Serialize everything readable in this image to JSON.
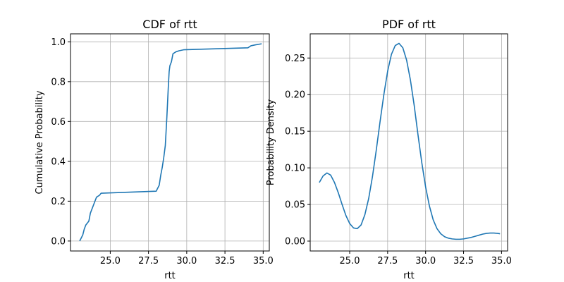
{
  "chart_data": [
    {
      "type": "line",
      "title": "CDF of rtt",
      "xlabel": "rtt",
      "ylabel": "Cumulative Probability",
      "xlim": [
        22.4,
        35.4
      ],
      "ylim": [
        -0.05,
        1.04
      ],
      "xticks": [
        25.0,
        27.5,
        30.0,
        32.5,
        35.0
      ],
      "xtick_labels": [
        "25.0",
        "27.5",
        "30.0",
        "32.5",
        "35.0"
      ],
      "yticks": [
        0.0,
        0.2,
        0.4,
        0.6,
        0.8,
        1.0
      ],
      "ytick_labels": [
        "0.0",
        "0.2",
        "0.4",
        "0.6",
        "0.8",
        "1.0"
      ],
      "grid": true,
      "color": "#1f77b4",
      "series": [
        {
          "x": [
            23.0,
            23.2,
            23.3,
            23.4,
            23.6,
            23.7,
            23.8,
            24.0,
            24.1,
            24.3,
            24.4,
            28.0,
            28.2,
            28.3,
            28.4,
            28.5,
            28.6,
            28.65,
            28.7,
            28.75,
            28.8,
            28.85,
            28.9,
            28.95,
            29.0,
            29.1,
            29.2,
            29.3,
            29.5,
            29.8,
            34.0,
            34.2,
            34.5,
            34.9
          ],
          "y": [
            0.0,
            0.03,
            0.06,
            0.08,
            0.1,
            0.14,
            0.16,
            0.2,
            0.22,
            0.23,
            0.24,
            0.25,
            0.28,
            0.33,
            0.37,
            0.42,
            0.48,
            0.55,
            0.62,
            0.7,
            0.78,
            0.85,
            0.88,
            0.89,
            0.9,
            0.94,
            0.945,
            0.95,
            0.955,
            0.96,
            0.97,
            0.98,
            0.985,
            0.99
          ]
        }
      ]
    },
    {
      "type": "line",
      "title": "PDF of rtt",
      "xlabel": "rtt",
      "ylabel": "Probability Density",
      "xlim": [
        22.4,
        35.4
      ],
      "ylim": [
        -0.0135,
        0.283
      ],
      "xticks": [
        25.0,
        27.5,
        30.0,
        32.5,
        35.0
      ],
      "xtick_labels": [
        "25.0",
        "27.5",
        "30.0",
        "32.5",
        "35.0"
      ],
      "yticks": [
        0.0,
        0.05,
        0.1,
        0.15,
        0.2,
        0.25
      ],
      "ytick_labels": [
        "0.00",
        "0.05",
        "0.10",
        "0.15",
        "0.20",
        "0.25"
      ],
      "grid": true,
      "color": "#1f77b4",
      "series": [
        {
          "x": [
            23.0,
            23.25,
            23.5,
            23.75,
            24.0,
            24.25,
            24.5,
            24.75,
            25.0,
            25.25,
            25.5,
            25.75,
            26.0,
            26.25,
            26.5,
            26.75,
            27.0,
            27.25,
            27.5,
            27.75,
            28.0,
            28.25,
            28.5,
            28.75,
            29.0,
            29.25,
            29.5,
            29.75,
            30.0,
            30.25,
            30.5,
            30.75,
            31.0,
            31.25,
            31.5,
            31.75,
            32.0,
            32.25,
            32.5,
            32.75,
            33.0,
            33.25,
            33.5,
            33.75,
            34.0,
            34.25,
            34.5,
            34.75,
            34.9
          ],
          "y": [
            0.08,
            0.089,
            0.093,
            0.09,
            0.08,
            0.066,
            0.05,
            0.035,
            0.024,
            0.018,
            0.017,
            0.022,
            0.036,
            0.058,
            0.088,
            0.124,
            0.163,
            0.2,
            0.232,
            0.255,
            0.267,
            0.27,
            0.264,
            0.247,
            0.22,
            0.185,
            0.145,
            0.107,
            0.074,
            0.048,
            0.029,
            0.017,
            0.01,
            0.006,
            0.004,
            0.003,
            0.0025,
            0.0025,
            0.003,
            0.004,
            0.005,
            0.0065,
            0.008,
            0.0095,
            0.0105,
            0.011,
            0.011,
            0.0105,
            0.01
          ]
        }
      ]
    }
  ]
}
